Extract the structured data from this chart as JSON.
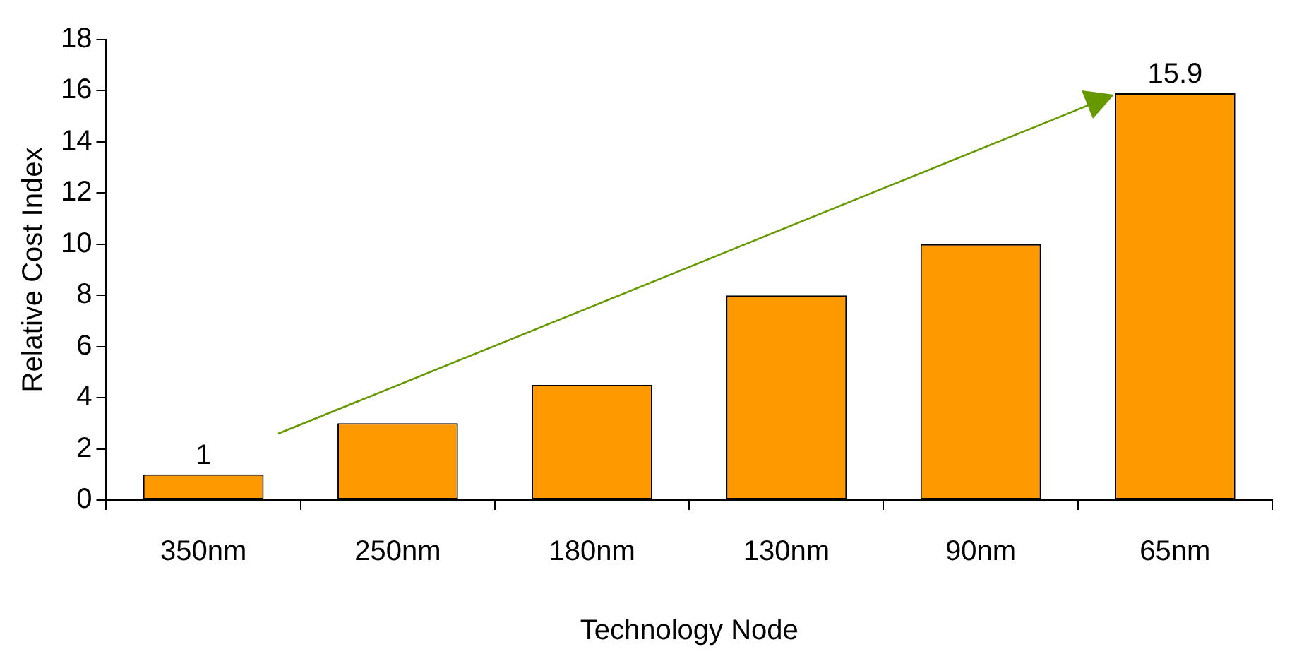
{
  "chart_data": {
    "type": "bar",
    "xlabel": "Technology Node",
    "ylabel": "Relative Cost Index",
    "categories": [
      "350nm",
      "250nm",
      "180nm",
      "130nm",
      "90nm",
      "65nm"
    ],
    "values": [
      1,
      3,
      4.5,
      8,
      10,
      15.9
    ],
    "value_labels": [
      "1",
      null,
      null,
      null,
      null,
      "15.9"
    ],
    "color": "#ff9900",
    "ylim": [
      0,
      18
    ],
    "yticks": [
      0,
      2,
      4,
      6,
      8,
      10,
      12,
      14,
      16,
      18
    ],
    "grid": false,
    "legend": false
  }
}
